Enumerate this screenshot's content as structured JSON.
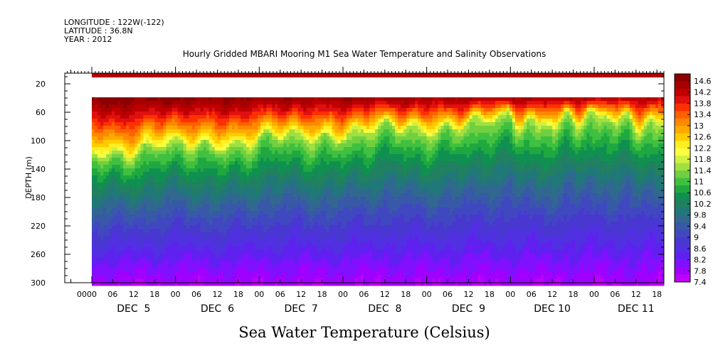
{
  "header": {
    "longitude": "LONGITUDE : 122W(-122)",
    "latitude": "LATITUDE : 36.8N",
    "year": "YEAR : 2012"
  },
  "chart_data": {
    "type": "heatmap",
    "title": "Hourly Gridded MBARI Mooring M1 Sea Water Temperature and Salinity Observations",
    "xlabel": "Sea Water Temperature (Celsius)",
    "ylabel": "DEPTH (m)",
    "x_hours": {
      "start_day": 5,
      "end_day": 11
    },
    "y_range_m": [
      5,
      300
    ],
    "y_ticks": [
      20,
      60,
      100,
      140,
      180,
      220,
      260,
      300
    ],
    "x_tick_labels": [
      "00",
      "06",
      "12",
      "18",
      "00",
      "06",
      "12",
      "18",
      "00",
      "06",
      "12",
      "18",
      "00",
      "06",
      "12",
      "18",
      "00",
      "06",
      "12",
      "18",
      "00",
      "06",
      "12",
      "18",
      "00",
      "06",
      "12",
      "18"
    ],
    "day_labels": [
      "DEC  5",
      "DEC  6",
      "DEC  7",
      "DEC  8",
      "DEC  9",
      "DEC 10",
      "DEC 11"
    ],
    "colorbar": {
      "labels": [
        "14.6",
        "14.2",
        "13.8",
        "13.4",
        "13",
        "12.6",
        "12.2",
        "11.8",
        "11.4",
        "11",
        "10.6",
        "10.2",
        "9.8",
        "9.4",
        "9",
        "8.6",
        "8.2",
        "7.8",
        "7.4"
      ],
      "colors": [
        "#8b0000",
        "#a60000",
        "#c00000",
        "#e01010",
        "#ff3000",
        "#ff6000",
        "#ff8800",
        "#ffaa00",
        "#ffcc00",
        "#ffee22",
        "#f8ff40",
        "#d0f040",
        "#a0e040",
        "#70d040",
        "#40c040",
        "#20a840",
        "#109050",
        "#208060",
        "#207878",
        "#306890",
        "#3858a8",
        "#4048c0",
        "#4838d0",
        "#5030e0",
        "#6020f0",
        "#8010ff",
        "#a000ff",
        "#c000ff"
      ],
      "vmin": 7.4,
      "vmax": 14.6
    },
    "notes": "Near-surface band at 5-11 m is ~14.8C; no data 11-39 m before DEC 5 00 and in the column above 39 m afterwards; from ~40 m down temperature declines from ~14 C through a yellow thermocline (~100-120 m early, shoaling to ~70 m by DEC 9-11) to ~7.6 C near 300 m."
  }
}
